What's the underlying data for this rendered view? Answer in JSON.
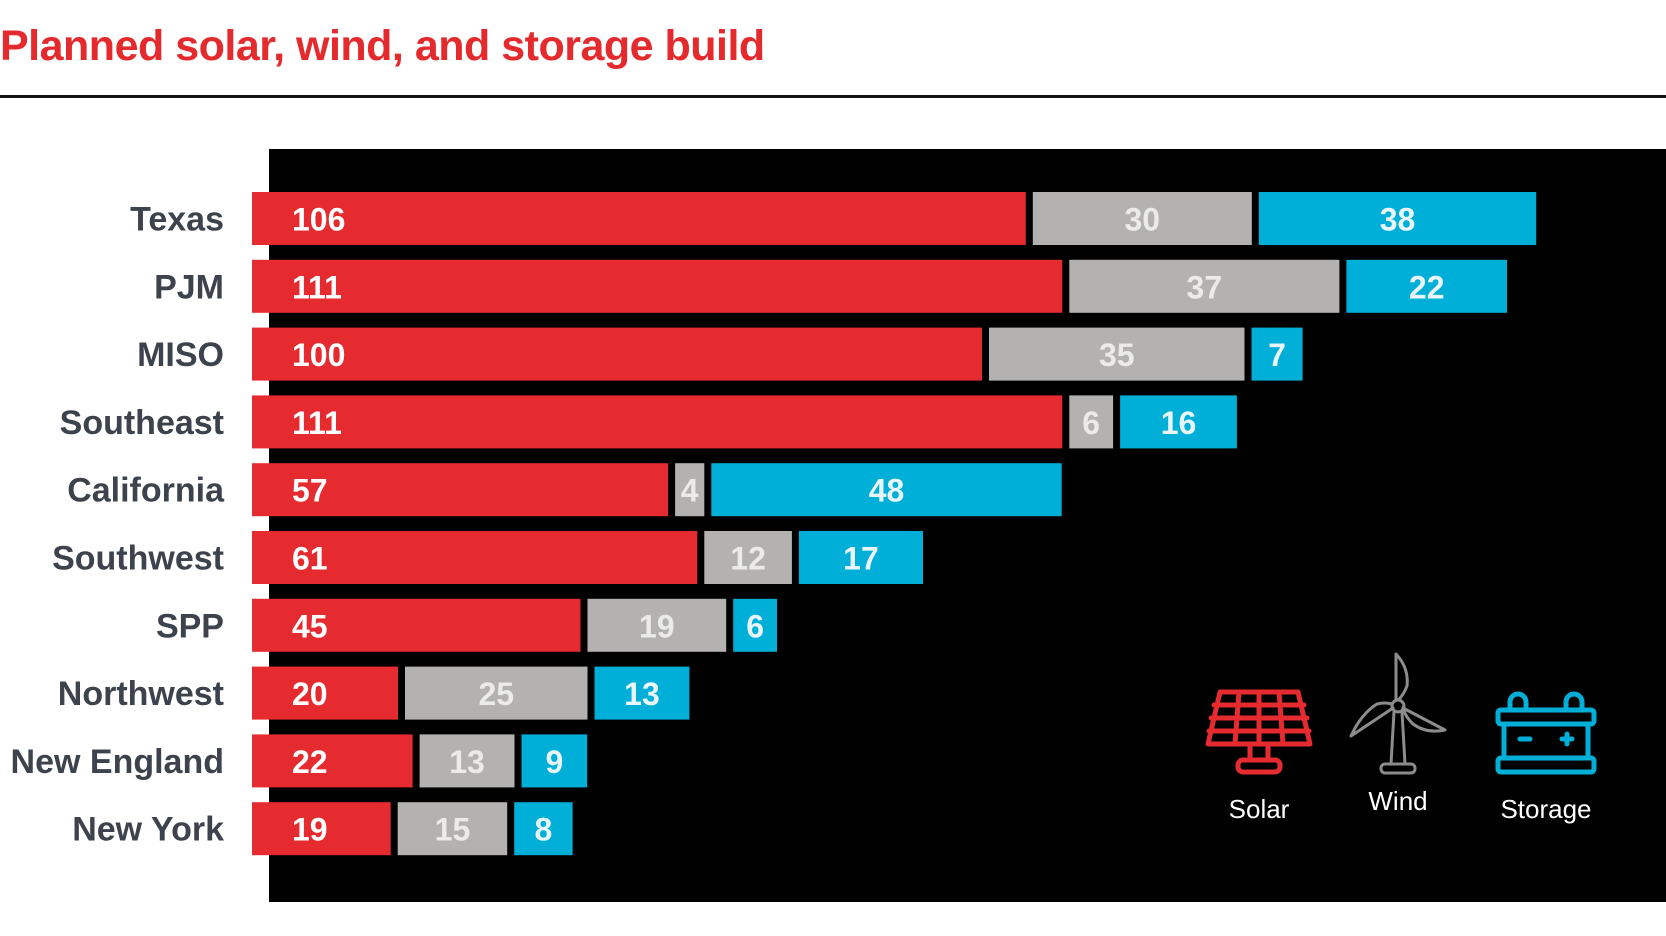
{
  "title": "Planned solar, wind, and storage build",
  "colors": {
    "title": "#e42a2d",
    "solar": "#e52b2f",
    "wind": "#b3b2b1",
    "storage": "#00afd8",
    "panel": "#000000",
    "category_text": "#3d434c",
    "solar_value_text": "#ffffff",
    "wind_value_text": "#ebebea",
    "storage_value_text": "#e8f6fb"
  },
  "legend": [
    {
      "key": "solar",
      "label": "Solar",
      "icon": "solar-panel-icon"
    },
    {
      "key": "wind",
      "label": "Wind",
      "icon": "wind-turbine-icon"
    },
    {
      "key": "storage",
      "label": "Storage",
      "icon": "battery-icon"
    }
  ],
  "chart_data": {
    "type": "bar",
    "orientation": "horizontal",
    "stacked": true,
    "title": "Planned solar, wind, and storage build",
    "xlabel": "",
    "ylabel": "",
    "grid": false,
    "legend_position": "bottom-right",
    "categories": [
      "Texas",
      "PJM",
      "MISO",
      "Southeast",
      "California",
      "Southwest",
      "SPP",
      "Northwest",
      "New England",
      "New York"
    ],
    "series": [
      {
        "name": "Solar",
        "key": "solar",
        "values": [
          106,
          111,
          100,
          111,
          57,
          61,
          45,
          20,
          22,
          19
        ]
      },
      {
        "name": "Wind",
        "key": "wind",
        "values": [
          30,
          37,
          35,
          6,
          4,
          12,
          19,
          25,
          13,
          15
        ]
      },
      {
        "name": "Storage",
        "key": "storage",
        "values": [
          38,
          22,
          7,
          16,
          48,
          17,
          6,
          13,
          9,
          8
        ]
      }
    ]
  }
}
